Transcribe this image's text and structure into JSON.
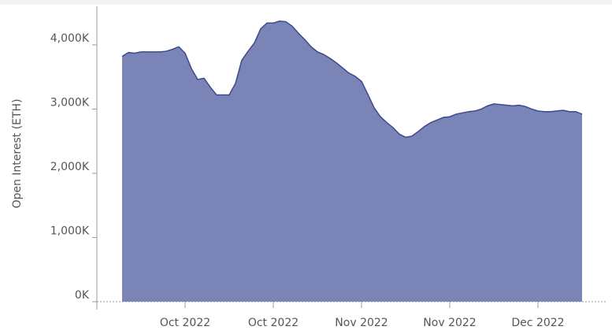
{
  "chart_data": {
    "type": "area",
    "y_label": "Open Interest (ETH)",
    "categories": [
      null,
      null,
      null,
      null,
      null,
      null,
      null,
      null,
      null,
      null,
      "Oct 2022",
      null,
      null,
      null,
      null,
      null,
      null,
      null,
      null,
      null,
      null,
      null,
      null,
      null,
      "Oct 2022",
      null,
      null,
      null,
      null,
      null,
      null,
      null,
      null,
      null,
      null,
      null,
      null,
      null,
      "Nov 2022",
      null,
      null,
      null,
      null,
      null,
      null,
      null,
      null,
      null,
      null,
      null,
      null,
      null,
      "Nov 2022",
      null,
      null,
      null,
      null,
      null,
      null,
      null,
      null,
      null,
      null,
      null,
      null,
      null,
      "Dec 2022",
      null,
      null,
      null,
      null,
      null,
      null,
      null
    ],
    "series": [
      {
        "name": "Open Interest (ETH)",
        "color": "#7b84b6",
        "line_color": "#3d4a8a",
        "values": [
          3820,
          3880,
          3870,
          3890,
          3890,
          3890,
          3890,
          3900,
          3930,
          3970,
          3870,
          3630,
          3460,
          3480,
          3340,
          3220,
          3220,
          3220,
          3400,
          3760,
          3900,
          4030,
          4250,
          4340,
          4340,
          4370,
          4360,
          4290,
          4180,
          4080,
          3970,
          3890,
          3850,
          3790,
          3720,
          3640,
          3560,
          3510,
          3430,
          3230,
          3020,
          2880,
          2790,
          2710,
          2610,
          2560,
          2580,
          2650,
          2730,
          2790,
          2830,
          2870,
          2880,
          2920,
          2940,
          2960,
          2970,
          3000,
          3050,
          3080,
          3070,
          3060,
          3050,
          3060,
          3040,
          3000,
          2970,
          2960,
          2960,
          2970,
          2980,
          2960,
          2960,
          2920
        ]
      }
    ],
    "ylim": [
      0,
      4600
    ],
    "yticks": [
      {
        "value": 0,
        "label": "0K"
      },
      {
        "value": 1000,
        "label": "1,000K"
      },
      {
        "value": 2000,
        "label": "2,000K"
      },
      {
        "value": 3000,
        "label": "3,000K"
      },
      {
        "value": 4000,
        "label": "4,000K"
      }
    ]
  }
}
